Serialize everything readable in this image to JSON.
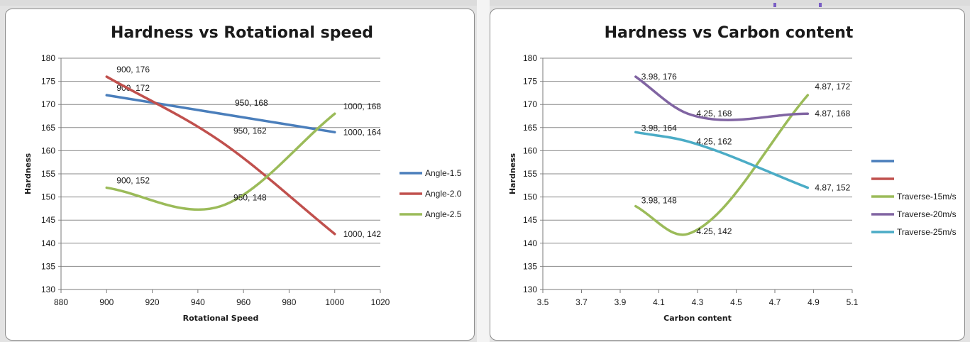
{
  "colors": {
    "blue": "#4a7ebb",
    "red": "#c0504d",
    "green": "#9bbb59",
    "purple": "#8064a2",
    "cyan": "#4bacc6"
  },
  "chart_data": [
    {
      "type": "line",
      "title": "Hardness vs Rotational speed",
      "xlabel": "Rotational  Speed",
      "ylabel": "Hardness",
      "xlim": [
        880,
        1020
      ],
      "ylim": [
        130,
        180
      ],
      "xticks": [
        "880",
        "900",
        "920",
        "940",
        "960",
        "980",
        "1000",
        "1020"
      ],
      "yticks": [
        "130",
        "135",
        "140",
        "145",
        "150",
        "155",
        "160",
        "165",
        "170",
        "175",
        "180"
      ],
      "grid": true,
      "legend_position": "right",
      "series": [
        {
          "name": "Angle-1.5",
          "color": "blue",
          "x": [
            900,
            950,
            1000
          ],
          "y": [
            172,
            168,
            164
          ],
          "labels": [
            "900, 172",
            "950, 168",
            "1000, 164"
          ]
        },
        {
          "name": "Angle-2.0",
          "color": "red",
          "x": [
            900,
            950,
            1000
          ],
          "y": [
            176,
            162,
            142
          ],
          "labels": [
            "900, 176",
            "950, 162",
            "1000, 142"
          ]
        },
        {
          "name": "Angle-2.5",
          "color": "green",
          "x": [
            900,
            950,
            1000
          ],
          "y": [
            152,
            148,
            168
          ],
          "labels": [
            "900, 152",
            "950, 148",
            "1000, 168"
          ]
        }
      ]
    },
    {
      "type": "line",
      "title": "Hardness vs Carbon content",
      "xlabel": "Carbon content",
      "ylabel": "Hardness",
      "xlim": [
        3.5,
        5.1
      ],
      "ylim": [
        130,
        180
      ],
      "xticks": [
        "3.5",
        "3.7",
        "3.9",
        "4.1",
        "4.3",
        "4.5",
        "4.7",
        "4.9",
        "5.1"
      ],
      "yticks": [
        "130",
        "135",
        "140",
        "145",
        "150",
        "155",
        "160",
        "165",
        "170",
        "175",
        "180"
      ],
      "grid": true,
      "legend_position": "right",
      "legend": [
        {
          "name": "",
          "color": "blue"
        },
        {
          "name": "",
          "color": "red"
        },
        {
          "name": "Traverse-15m/s",
          "color": "green"
        },
        {
          "name": "Traverse-20m/s",
          "color": "purple"
        },
        {
          "name": "Traverse-25m/s",
          "color": "cyan"
        }
      ],
      "series": [
        {
          "name": "Traverse-15m/s",
          "color": "green",
          "x": [
            3.98,
            4.25,
            4.87
          ],
          "y": [
            148,
            142,
            172
          ],
          "labels": [
            "3.98, 148",
            "4.25, 142",
            "4.87, 172"
          ]
        },
        {
          "name": "Traverse-20m/s",
          "color": "purple",
          "x": [
            3.98,
            4.25,
            4.87
          ],
          "y": [
            176,
            168,
            168
          ],
          "labels": [
            "3.98, 176",
            "4.25, 168",
            "4.87, 168"
          ]
        },
        {
          "name": "Traverse-25m/s",
          "color": "cyan",
          "x": [
            3.98,
            4.25,
            4.87
          ],
          "y": [
            164,
            162,
            152
          ],
          "labels": [
            "3.98, 164",
            "4.25, 162",
            "4.87, 152"
          ]
        }
      ]
    }
  ]
}
